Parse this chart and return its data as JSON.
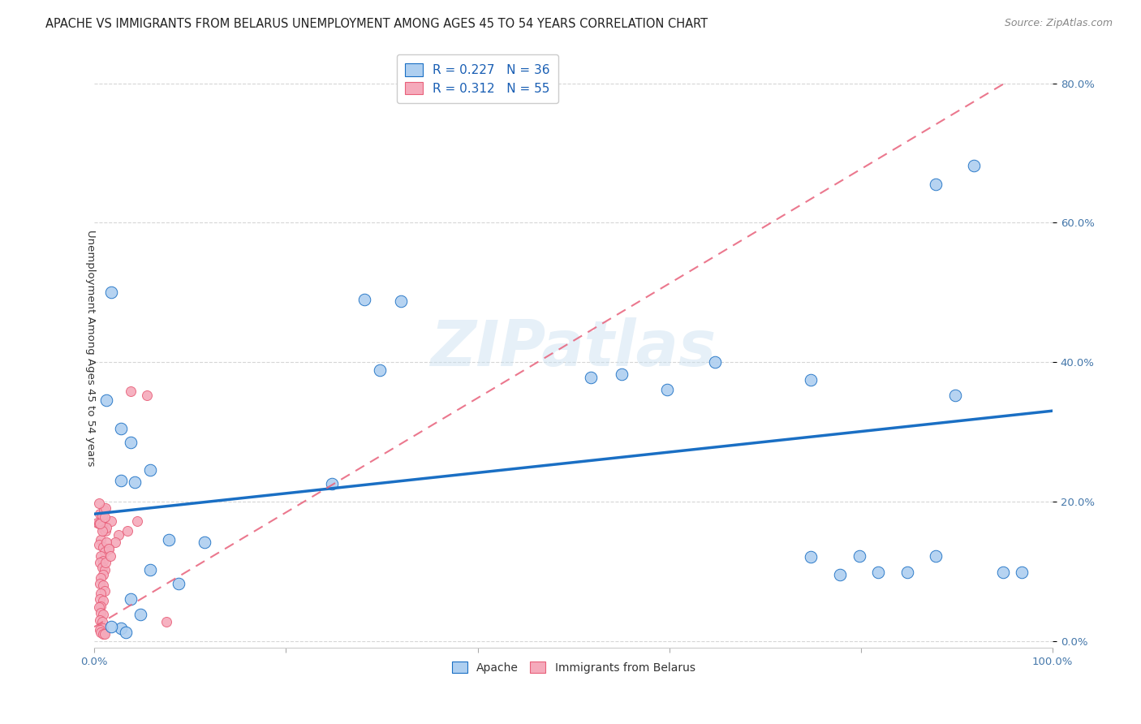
{
  "title": "APACHE VS IMMIGRANTS FROM BELARUS UNEMPLOYMENT AMONG AGES 45 TO 54 YEARS CORRELATION CHART",
  "source": "Source: ZipAtlas.com",
  "ylabel": "Unemployment Among Ages 45 to 54 years",
  "xlim": [
    0,
    1.0
  ],
  "ylim": [
    -0.01,
    0.85
  ],
  "xticks": [
    0.0,
    0.2,
    0.4,
    0.6,
    0.8,
    1.0
  ],
  "xticklabels": [
    "0.0%",
    "",
    "",
    "",
    "",
    "100.0%"
  ],
  "yticks": [
    0.0,
    0.2,
    0.4,
    0.6,
    0.8
  ],
  "yticklabels": [
    "0.0%",
    "20.0%",
    "40.0%",
    "60.0%",
    "80.0%"
  ],
  "watermark": "ZIPatlas",
  "legend_r1": "R = 0.227",
  "legend_n1": "N = 36",
  "legend_r2": "R = 0.312",
  "legend_n2": "N = 55",
  "apache_color": "#aecff0",
  "belarus_color": "#f5aabb",
  "apache_line_color": "#1a6fc4",
  "belarus_line_color": "#e8607a",
  "apache_scatter": [
    [
      0.018,
      0.5
    ],
    [
      0.013,
      0.345
    ],
    [
      0.028,
      0.305
    ],
    [
      0.038,
      0.285
    ],
    [
      0.028,
      0.23
    ],
    [
      0.042,
      0.228
    ],
    [
      0.058,
      0.245
    ],
    [
      0.078,
      0.145
    ],
    [
      0.115,
      0.142
    ],
    [
      0.058,
      0.102
    ],
    [
      0.088,
      0.082
    ],
    [
      0.038,
      0.06
    ],
    [
      0.048,
      0.038
    ],
    [
      0.028,
      0.018
    ],
    [
      0.018,
      0.02
    ],
    [
      0.033,
      0.012
    ],
    [
      0.248,
      0.225
    ],
    [
      0.282,
      0.49
    ],
    [
      0.32,
      0.487
    ],
    [
      0.298,
      0.388
    ],
    [
      0.55,
      0.382
    ],
    [
      0.598,
      0.36
    ],
    [
      0.648,
      0.4
    ],
    [
      0.748,
      0.375
    ],
    [
      0.798,
      0.122
    ],
    [
      0.818,
      0.098
    ],
    [
      0.778,
      0.095
    ],
    [
      0.848,
      0.098
    ],
    [
      0.878,
      0.122
    ],
    [
      0.898,
      0.352
    ],
    [
      0.878,
      0.655
    ],
    [
      0.918,
      0.682
    ],
    [
      0.948,
      0.098
    ],
    [
      0.968,
      0.098
    ],
    [
      0.518,
      0.378
    ],
    [
      0.748,
      0.12
    ]
  ],
  "belarus_scatter": [
    [
      0.003,
      0.17
    ],
    [
      0.005,
      0.168
    ],
    [
      0.008,
      0.165
    ],
    [
      0.01,
      0.16
    ],
    [
      0.012,
      0.158
    ],
    [
      0.007,
      0.145
    ],
    [
      0.005,
      0.138
    ],
    [
      0.009,
      0.135
    ],
    [
      0.011,
      0.128
    ],
    [
      0.007,
      0.122
    ],
    [
      0.009,
      0.115
    ],
    [
      0.006,
      0.112
    ],
    [
      0.008,
      0.105
    ],
    [
      0.011,
      0.102
    ],
    [
      0.009,
      0.095
    ],
    [
      0.007,
      0.09
    ],
    [
      0.006,
      0.082
    ],
    [
      0.009,
      0.08
    ],
    [
      0.011,
      0.072
    ],
    [
      0.007,
      0.068
    ],
    [
      0.006,
      0.06
    ],
    [
      0.009,
      0.058
    ],
    [
      0.007,
      0.05
    ],
    [
      0.005,
      0.048
    ],
    [
      0.007,
      0.04
    ],
    [
      0.009,
      0.038
    ],
    [
      0.006,
      0.03
    ],
    [
      0.008,
      0.028
    ],
    [
      0.009,
      0.018
    ],
    [
      0.006,
      0.016
    ],
    [
      0.007,
      0.012
    ],
    [
      0.009,
      0.01
    ],
    [
      0.011,
      0.01
    ],
    [
      0.025,
      0.152
    ],
    [
      0.035,
      0.158
    ],
    [
      0.006,
      0.182
    ],
    [
      0.008,
      0.18
    ],
    [
      0.01,
      0.188
    ],
    [
      0.012,
      0.19
    ],
    [
      0.005,
      0.198
    ],
    [
      0.075,
      0.028
    ],
    [
      0.045,
      0.172
    ],
    [
      0.038,
      0.358
    ],
    [
      0.055,
      0.352
    ],
    [
      0.018,
      0.172
    ],
    [
      0.022,
      0.142
    ],
    [
      0.015,
      0.132
    ],
    [
      0.012,
      0.112
    ],
    [
      0.013,
      0.162
    ],
    [
      0.008,
      0.158
    ],
    [
      0.006,
      0.168
    ],
    [
      0.011,
      0.178
    ],
    [
      0.013,
      0.142
    ],
    [
      0.015,
      0.132
    ],
    [
      0.017,
      0.122
    ]
  ],
  "apache_trend_x": [
    0.0,
    1.0
  ],
  "apache_trend_y": [
    0.182,
    0.33
  ],
  "belarus_trend_x": [
    0.0,
    0.95
  ],
  "belarus_trend_y": [
    0.02,
    0.8
  ],
  "dot_size_apache": 110,
  "dot_size_belarus": 75,
  "title_fontsize": 10.5,
  "label_fontsize": 9.5,
  "tick_fontsize": 9.5,
  "grid_color": "#cccccc",
  "background_color": "#ffffff"
}
